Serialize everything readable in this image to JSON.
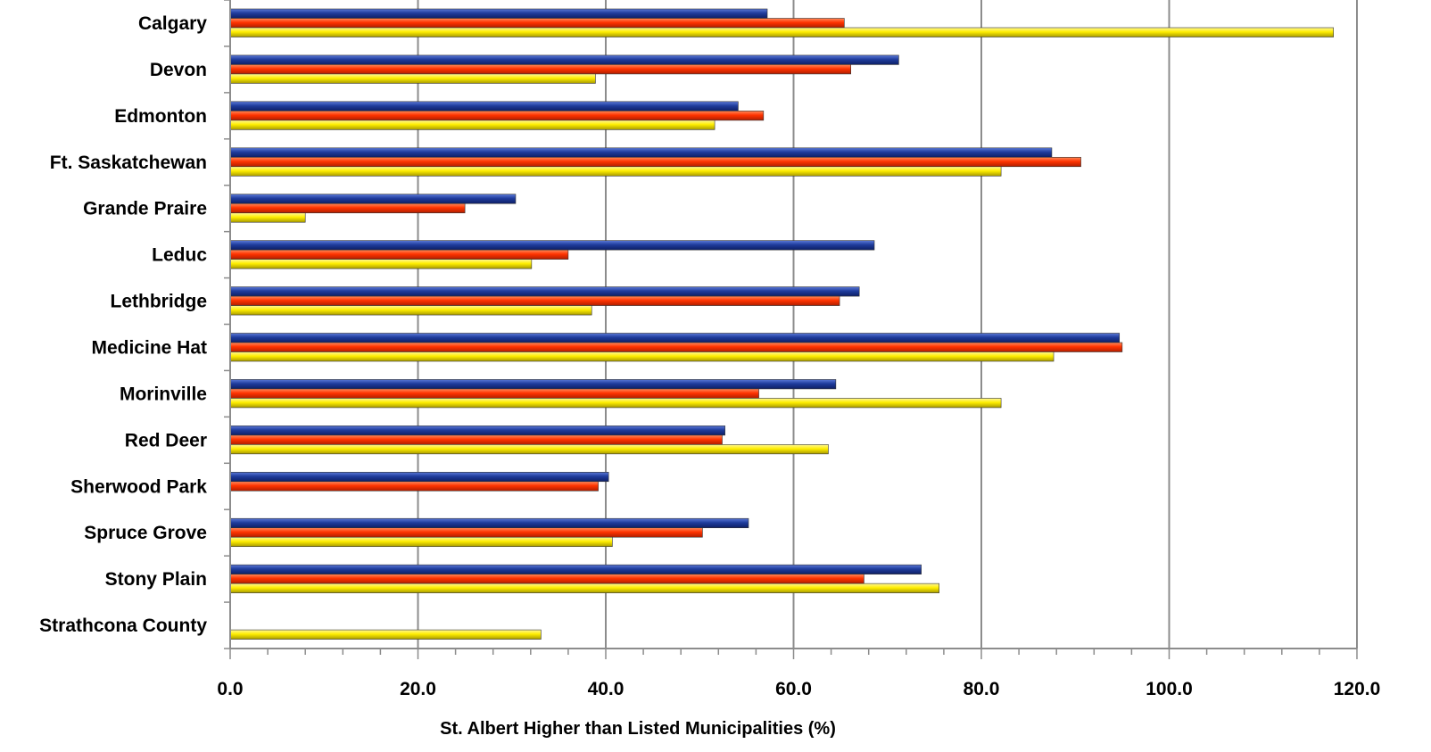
{
  "chart_data": {
    "type": "bar",
    "orientation": "horizontal",
    "title": "",
    "xlabel": "St. Albert Higher than Listed Municipalities (%)",
    "ylabel": "",
    "xlim": [
      0,
      120
    ],
    "x_major_step": 20,
    "x_minor_step": 4,
    "x_tick_labels": [
      "0.0",
      "20.0",
      "40.0",
      "60.0",
      "80.0",
      "100.0",
      "120.0"
    ],
    "grid": "vertical major gridlines",
    "legend": "none",
    "categories": [
      "Calgary",
      "Devon",
      "Edmonton",
      "Ft. Saskatchewan",
      "Grande Praire",
      "Leduc",
      "Lethbridge",
      "Medicine Hat",
      "Morinville",
      "Red Deer",
      "Sherwood Park",
      "Spruce Grove",
      "Stony Plain",
      "Strathcona County"
    ],
    "series": [
      {
        "color": "#1f3c9c",
        "values": [
          57.2,
          71.2,
          54.1,
          87.5,
          30.4,
          68.6,
          67.0,
          94.7,
          64.5,
          52.7,
          40.3,
          55.2,
          73.6,
          null
        ]
      },
      {
        "color": "#ff3300",
        "values": [
          65.4,
          66.1,
          56.8,
          90.6,
          25.0,
          36.0,
          64.9,
          95.0,
          56.3,
          52.4,
          39.2,
          50.3,
          67.5,
          null
        ]
      },
      {
        "color": "#ffee00",
        "values": [
          117.5,
          38.9,
          51.6,
          82.1,
          8.0,
          32.1,
          38.5,
          87.7,
          82.1,
          63.7,
          null,
          40.7,
          75.5,
          33.1
        ]
      }
    ]
  }
}
